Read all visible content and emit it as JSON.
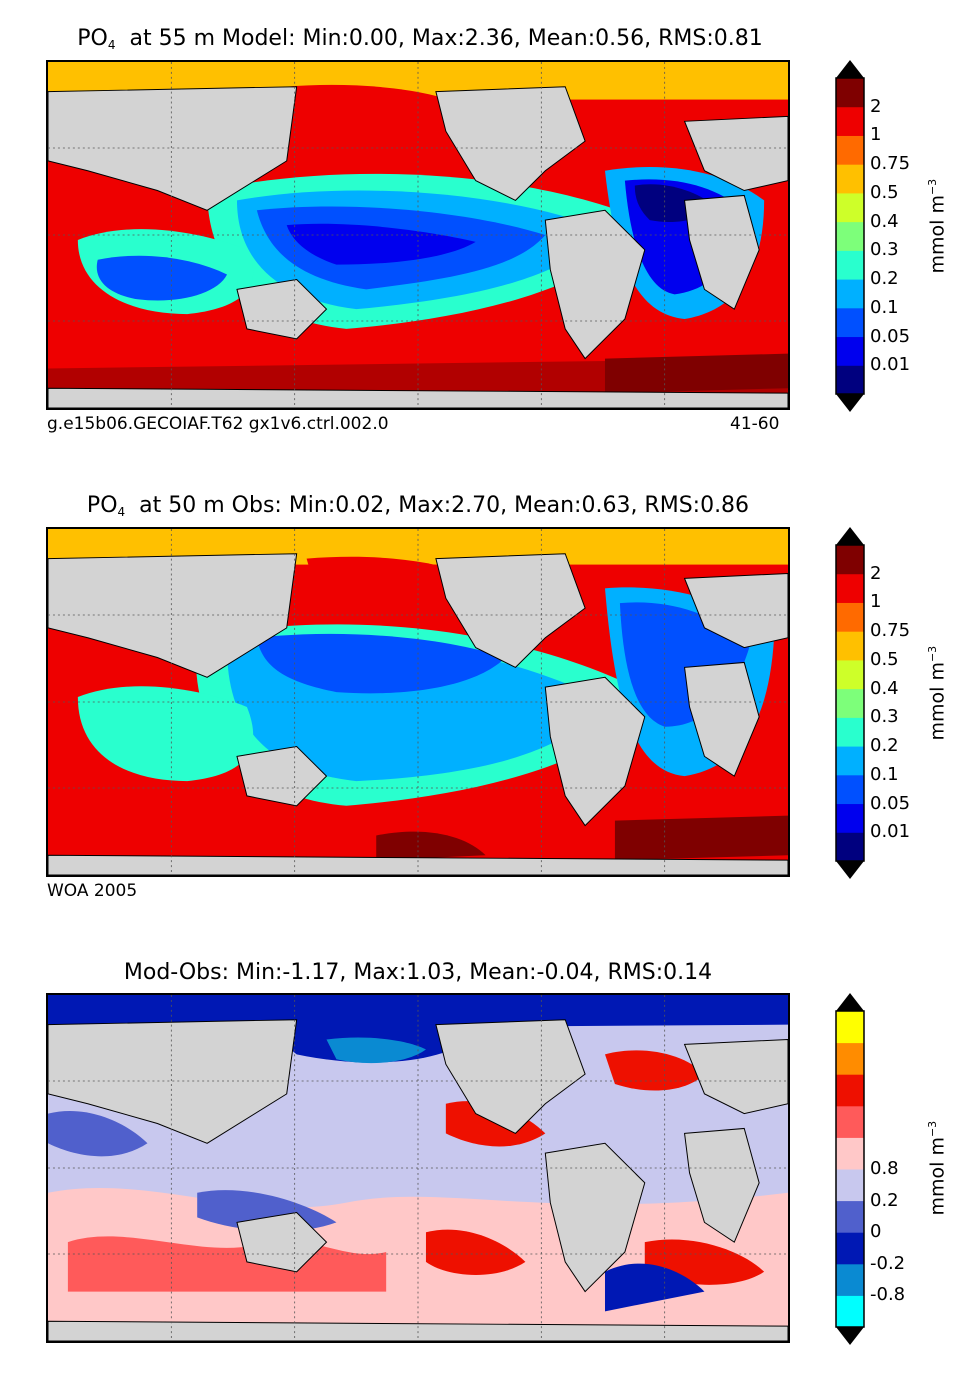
{
  "chart_data": [
    {
      "type": "heatmap",
      "title_prefix": "PO",
      "title_sub": "4",
      "title": "at 55 m Model: Min:0.00, Max:2.36, Mean:0.56, RMS:0.81",
      "caption_left": "g.e15b06.GECOIAF.T62 gx1v6.ctrl.002.0",
      "caption_right": "41-60",
      "colorbar": {
        "levels": [
          "0.01",
          "0.05",
          "0.1",
          "0.2",
          "0.3",
          "0.4",
          "0.5",
          "0.75",
          "1",
          "2"
        ],
        "colors": [
          "#00007f",
          "#0000ee",
          "#0050ff",
          "#00b0ff",
          "#29ffce",
          "#7dff7a",
          "#ceff29",
          "#ffc000",
          "#ff6a00",
          "#ee0000",
          "#7f0000"
        ],
        "label": "mmol m",
        "label_exp": "−3"
      }
    },
    {
      "type": "heatmap",
      "title_prefix": "PO",
      "title_sub": "4",
      "title": "at 50 m Obs: Min:0.02, Max:2.70, Mean:0.63, RMS:0.86",
      "caption_left": "WOA 2005",
      "colorbar": {
        "levels": [
          "0.01",
          "0.05",
          "0.1",
          "0.2",
          "0.3",
          "0.4",
          "0.5",
          "0.75",
          "1",
          "2"
        ],
        "colors": [
          "#00007f",
          "#0000ee",
          "#0050ff",
          "#00b0ff",
          "#29ffce",
          "#7dff7a",
          "#ceff29",
          "#ffc000",
          "#ff6a00",
          "#ee0000",
          "#7f0000"
        ],
        "label": "mmol m",
        "label_exp": "−3"
      }
    },
    {
      "type": "heatmap",
      "title": "Mod-Obs: Min:-1.17, Max:1.03, Mean:-0.04, RMS:0.14",
      "colorbar": {
        "levels": [
          "-0.8",
          "-0.2",
          "0",
          "0.2",
          "0.8"
        ],
        "colors": [
          "#00ffff",
          "#0a8ad2",
          "#0018b4",
          "#5060cc",
          "#c8c8ee",
          "#ffc8c8",
          "#ff5a5a",
          "#ee1000",
          "#ff8c00",
          "#ffff00"
        ],
        "label": "mmol m",
        "label_exp": "−3"
      }
    }
  ]
}
